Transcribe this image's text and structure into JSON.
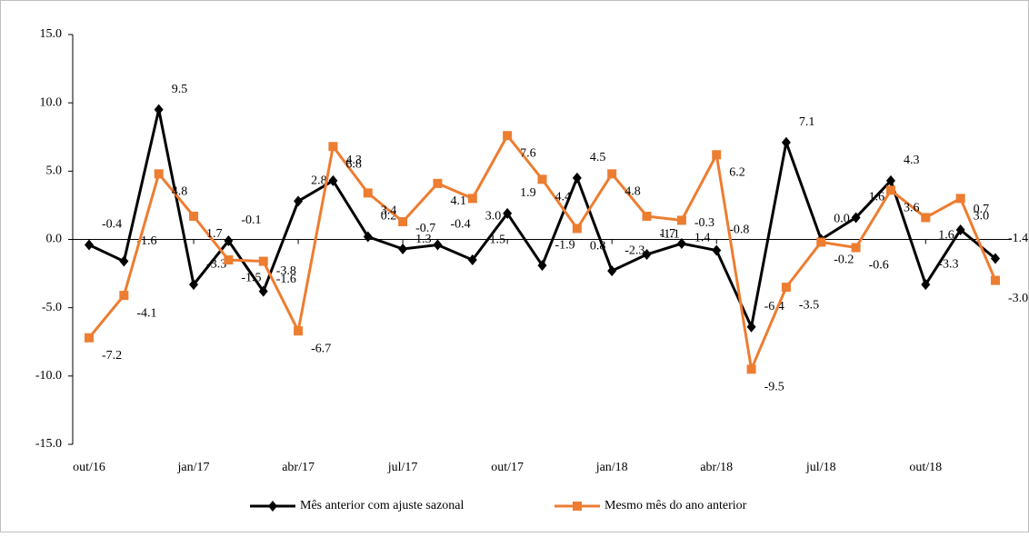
{
  "chart_data": {
    "type": "line",
    "categories": [
      "out/16",
      null,
      null,
      "jan/17",
      null,
      null,
      "abr/17",
      null,
      null,
      "jul/17",
      null,
      null,
      "out/17",
      null,
      null,
      "jan/18",
      null,
      null,
      "abr/18",
      null,
      null,
      "jul/18",
      null,
      null,
      "out/18",
      null,
      null
    ],
    "series": [
      {
        "name": "Mês anterior com ajuste sazonal",
        "color": "#000000",
        "values": [
          -0.4,
          -1.6,
          9.5,
          -3.3,
          -0.1,
          -3.8,
          2.8,
          4.3,
          0.2,
          -0.7,
          -0.4,
          -1.5,
          1.9,
          -1.9,
          4.5,
          -2.3,
          -1.1,
          -0.3,
          -0.8,
          -6.4,
          7.1,
          0.0,
          1.6,
          4.3,
          -3.3,
          0.7,
          -1.4
        ],
        "value_labels": [
          "-0.4",
          "-1.6",
          "9.5",
          "-3.3",
          "-0.1",
          "-3.8",
          "2.8",
          "4.3",
          "0.2",
          "-0.7",
          "-0.4",
          "-1.5",
          "1.9",
          "-1.9",
          "4.5",
          "-2.3",
          "-1.1",
          "-0.3",
          "-0.8",
          "-6.4",
          "7.1",
          "0.0",
          "1.6",
          "4.3",
          "-3.3",
          "0.7",
          "-1.4"
        ]
      },
      {
        "name": "Mesmo mês do ano anterior",
        "color": "#ed7d31",
        "values": [
          -7.2,
          -4.1,
          4.8,
          1.7,
          -1.5,
          -1.6,
          -6.7,
          6.8,
          3.4,
          1.3,
          4.1,
          3.0,
          7.6,
          4.4,
          0.8,
          4.8,
          1.7,
          1.4,
          6.2,
          -9.5,
          -3.5,
          -0.2,
          -0.6,
          3.6,
          1.6,
          3.0,
          -3.0
        ],
        "value_labels": [
          "-7.2",
          "-4.1",
          "4.8",
          "1.7",
          "-1.5",
          "-1.6",
          "-6.7",
          "6.8",
          "3.4",
          "1.3",
          "4.1",
          "3.0",
          "7.6",
          "4.4",
          "0.8",
          "4.8",
          "1.7",
          "1.4",
          "6.2",
          "-9.5",
          "-3.5",
          "-0.2",
          "-0.6",
          "3.6",
          "1.6",
          "3.0",
          "-3.0"
        ]
      }
    ],
    "ylim": [
      -15,
      15
    ],
    "yticks": [
      {
        "value": -15,
        "label": "-15.0"
      },
      {
        "value": -10,
        "label": "-10.0"
      },
      {
        "value": -5,
        "label": "-5.0"
      },
      {
        "value": 0,
        "label": "0.0"
      },
      {
        "value": 5,
        "label": "5.0"
      },
      {
        "value": 10,
        "label": "10.0"
      },
      {
        "value": 15,
        "label": "15.0"
      }
    ],
    "legend": "bottom"
  }
}
